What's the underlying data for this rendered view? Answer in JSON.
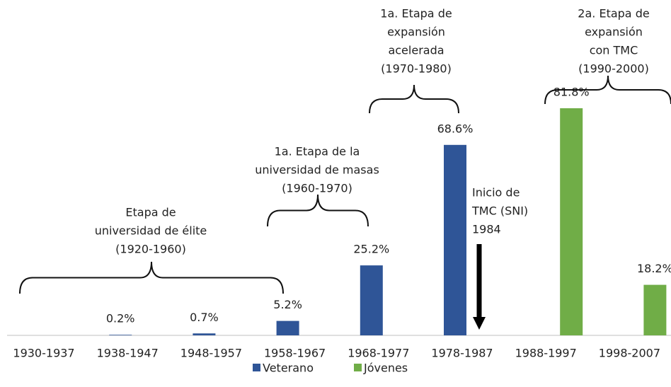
{
  "chart_data": {
    "type": "bar",
    "categories": [
      "1930-1937",
      "1938-1947",
      "1948-1957",
      "1958-1967",
      "1968-1977",
      "1978-1987",
      "1988-1997",
      "1998-2007"
    ],
    "series": [
      {
        "name": "Veterano",
        "color": "#2f5597",
        "values": [
          null,
          0.2,
          0.7,
          5.2,
          25.2,
          68.6,
          null,
          null
        ],
        "value_labels": [
          null,
          "0.2%",
          "0.7%",
          "5.2%",
          "25.2%",
          "68.6%",
          null,
          null
        ]
      },
      {
        "name": "Jóvenes",
        "color": "#70ad47",
        "values": [
          null,
          null,
          null,
          null,
          null,
          null,
          81.8,
          18.2
        ],
        "value_labels": [
          null,
          null,
          null,
          null,
          null,
          null,
          "81.8%",
          "18.2%"
        ]
      }
    ],
    "ylim": [
      0,
      82
    ],
    "annotations": [
      {
        "lines": [
          "Etapa de",
          "universidad de élite",
          "(1920-1960)"
        ]
      },
      {
        "lines": [
          "1a. Etapa de la",
          "universidad de masas",
          "(1960-1970)"
        ]
      },
      {
        "lines": [
          "1a. Etapa de",
          "expansión",
          "acelerada",
          "(1970-1980)"
        ]
      },
      {
        "lines": [
          "2a. Etapa de",
          "expansión",
          "con TMC",
          "(1990-2000)"
        ]
      },
      {
        "lines": [
          "Inicio de",
          "TMC (SNI)",
          "1984"
        ]
      }
    ]
  }
}
